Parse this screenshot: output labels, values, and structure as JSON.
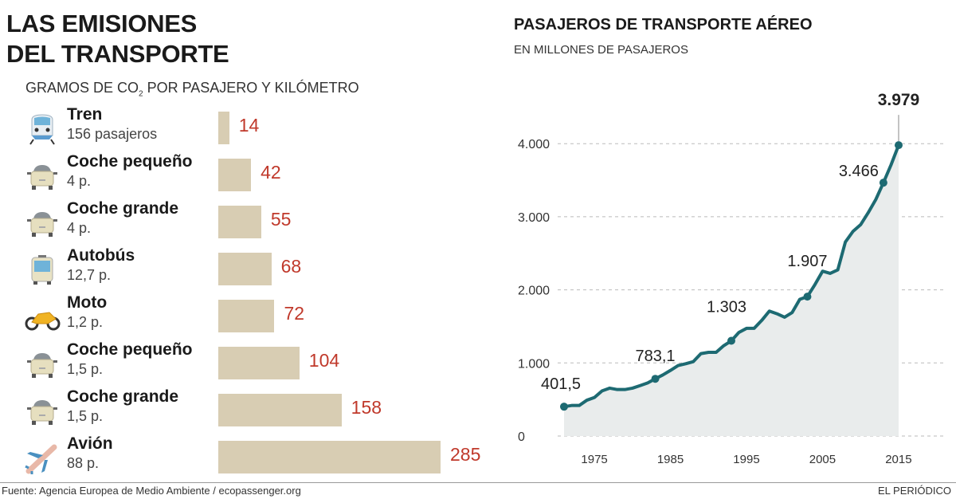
{
  "left": {
    "title_line1": "LAS EMISIONES",
    "title_line2": "DEL TRANSPORTE",
    "subtitle_pre": "GRAMOS DE CO",
    "subtitle_sub": "2",
    "subtitle_post": " POR PASAJERO Y KILÓMETRO",
    "rows": [
      {
        "name": "Tren",
        "passengers": "156 pasajeros",
        "value": 14,
        "label": "14",
        "icon": "train-icon"
      },
      {
        "name": "Coche pequeño",
        "passengers": "4 p.",
        "value": 42,
        "label": "42",
        "icon": "car-icon"
      },
      {
        "name": "Coche grande",
        "passengers": "4 p.",
        "value": 55,
        "label": "55",
        "icon": "car-icon"
      },
      {
        "name": "Autobús",
        "passengers": "12,7 p.",
        "value": 68,
        "label": "68",
        "icon": "bus-icon"
      },
      {
        "name": "Moto",
        "passengers": "1,2 p.",
        "value": 72,
        "label": "72",
        "icon": "motorcycle-icon"
      },
      {
        "name": "Coche pequeño",
        "passengers": "1,5 p.",
        "value": 104,
        "label": "104",
        "icon": "car-icon"
      },
      {
        "name": "Coche grande",
        "passengers": "1,5 p.",
        "value": 158,
        "label": "158",
        "icon": "car-icon"
      },
      {
        "name": "Avión",
        "passengers": "88 p.",
        "value": 285,
        "label": "285",
        "icon": "airplane-icon"
      }
    ]
  },
  "right": {
    "title": "PASAJEROS DE TRANSPORTE AÉREO",
    "subtitle": "EN MILLONES DE PASAJEROS"
  },
  "chart_data": [
    {
      "type": "bar",
      "orientation": "horizontal",
      "title": "LAS EMISIONES DEL TRANSPORTE",
      "subtitle": "GRAMOS DE CO2 POR PASAJERO Y KILÓMETRO",
      "categories": [
        "Tren",
        "Coche pequeño",
        "Coche grande",
        "Autobús",
        "Moto",
        "Coche pequeño",
        "Coche grande",
        "Avión"
      ],
      "values": [
        14,
        42,
        55,
        68,
        72,
        104,
        158,
        285
      ],
      "bar_color": "#d8cdb3",
      "label_color": "#c0392b"
    },
    {
      "type": "area",
      "title": "PASAJEROS DE TRANSPORTE AÉREO",
      "subtitle": "EN MILLONES DE PASAJEROS",
      "x": [
        1973,
        1974,
        1975,
        1976,
        1977,
        1978,
        1979,
        1980,
        1981,
        1982,
        1983,
        1984,
        1985,
        1986,
        1987,
        1988,
        1989,
        1990,
        1991,
        1992,
        1993,
        1994,
        1995,
        1996,
        1997,
        1998,
        1999,
        2000,
        2001,
        2002,
        2003,
        2004,
        2005,
        2006,
        2007,
        2008,
        2009,
        2010,
        2011,
        2012,
        2013,
        2014,
        2015,
        2016,
        2017
      ],
      "y": [
        401.5,
        418,
        418,
        490,
        527,
        618,
        655,
        636,
        636,
        655,
        690,
        727,
        783.1,
        836,
        898,
        964,
        989,
        1018,
        1127,
        1145,
        1145,
        1236,
        1303,
        1418,
        1473,
        1473,
        1582,
        1709,
        1673,
        1625,
        1690,
        1870,
        1907,
        2073,
        2255,
        2225,
        2273,
        2655,
        2800,
        2891,
        3055,
        3236,
        3466,
        3709,
        3979
      ],
      "annotations": [
        {
          "x": 1973,
          "label": "401,5"
        },
        {
          "x": 1985,
          "label": "783,1"
        },
        {
          "x": 1995,
          "label": "1.303"
        },
        {
          "x": 2005,
          "label": "1.907"
        },
        {
          "x": 2015,
          "label": "3.466"
        },
        {
          "x": 2017,
          "label": "3.979"
        }
      ],
      "yticks": [
        0,
        1000,
        2000,
        3000,
        4000
      ],
      "ytick_labels": [
        "0",
        "1.000",
        "2.000",
        "3.000",
        "4.000"
      ],
      "xticks": [
        1975,
        1985,
        1995,
        2005,
        2015
      ],
      "xtick_labels": [
        "1975",
        "1985",
        "1995",
        "2005",
        "2015"
      ],
      "ylim": [
        0,
        4000
      ],
      "grid": "horizontal dashed",
      "line_color": "#1d6a72",
      "fill_color": "#e9ecec"
    }
  ],
  "footer": {
    "source": "Fuente: Agencia Europea de Medio Ambiente / ecopassenger.org",
    "brand": "EL PERIÓDICO"
  }
}
